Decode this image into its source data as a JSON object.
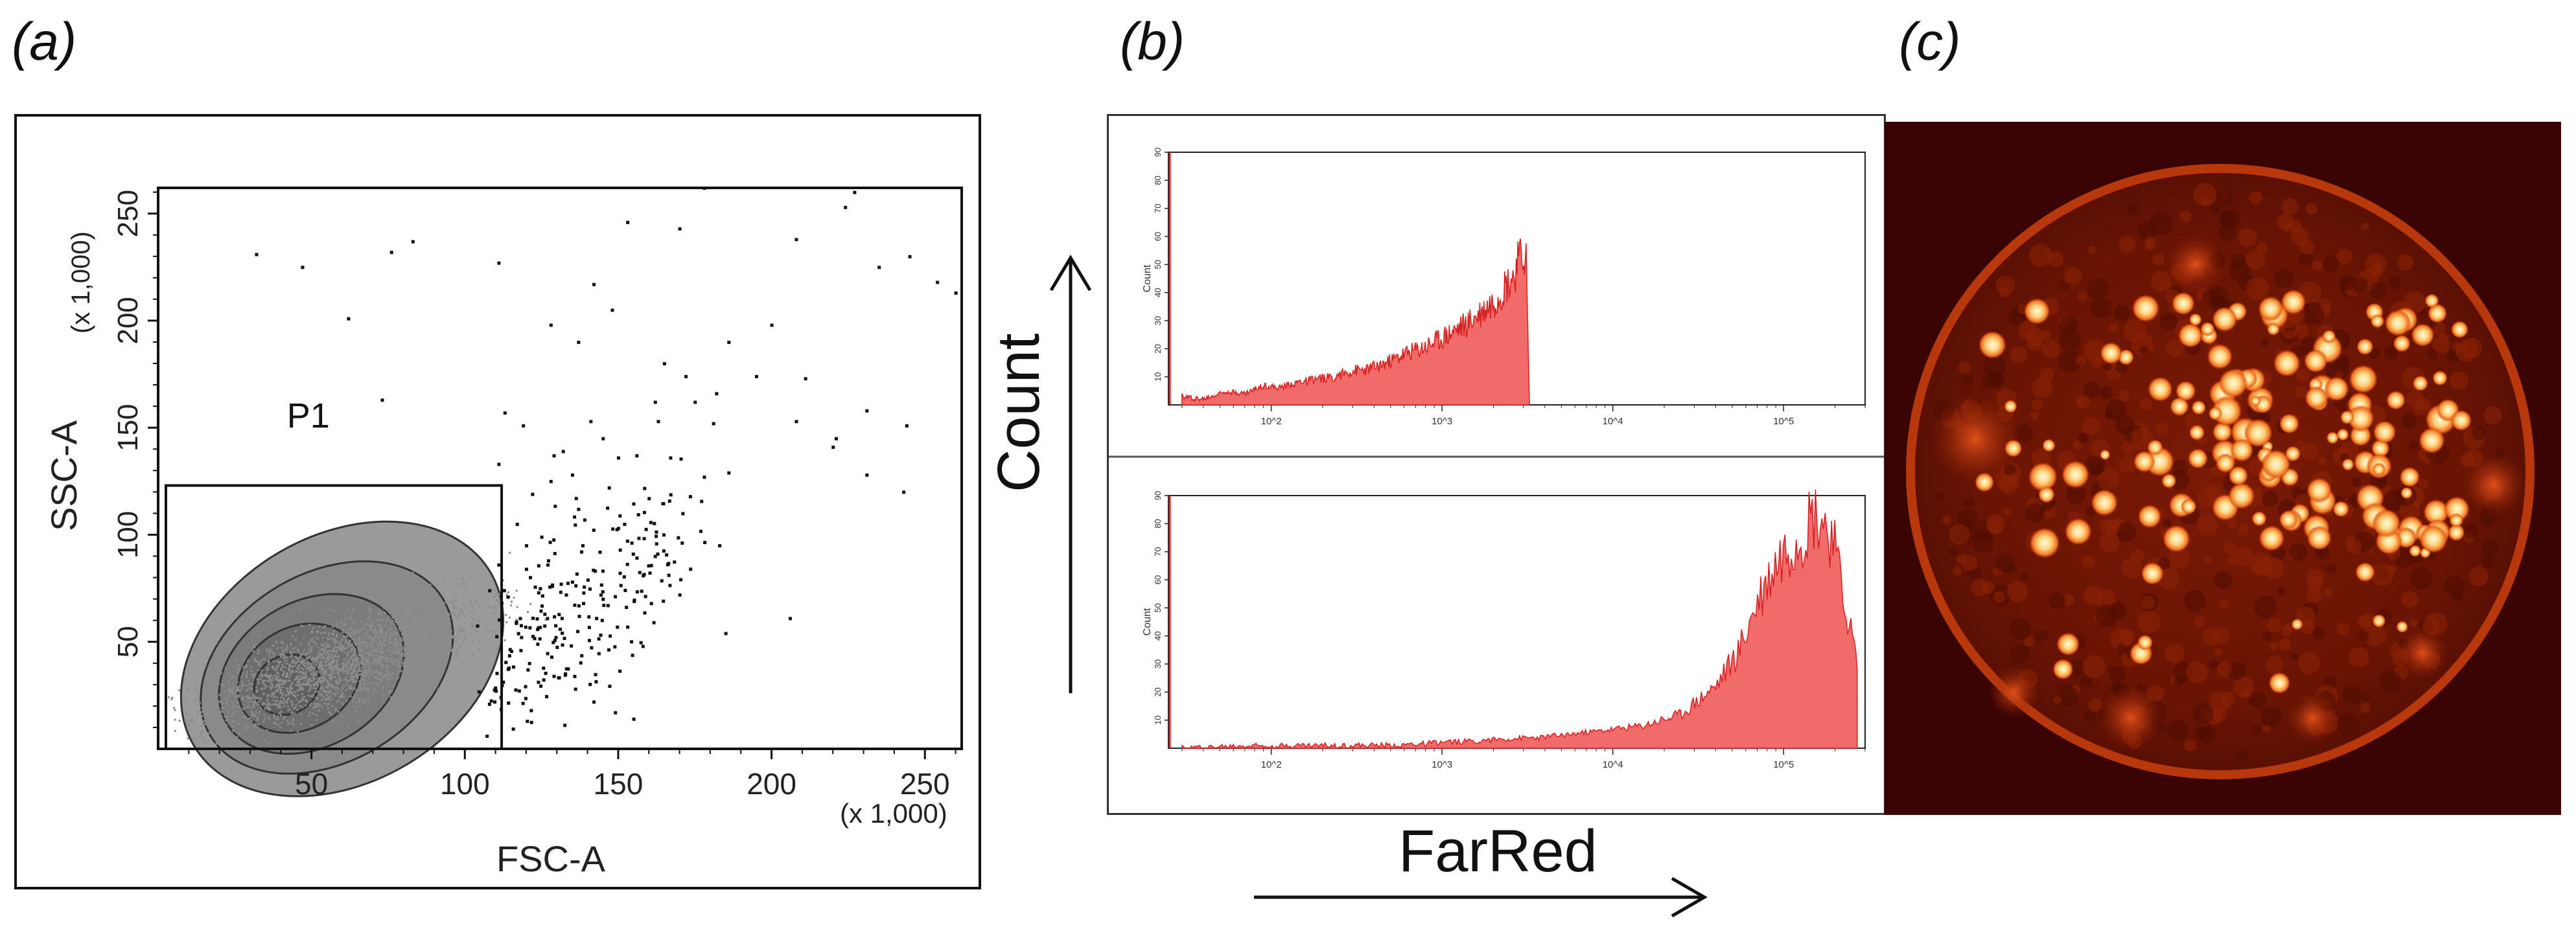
{
  "panels": {
    "a": "(a)",
    "b": "(b)",
    "c": "(c)"
  },
  "colors": {
    "hist_fill": "#f26b6b",
    "hist_line": "#d62020",
    "contour": "#7a7a7a",
    "dots": "#111111",
    "gate": "#111111"
  },
  "chart_data": [
    {
      "type": "scatter",
      "title": "",
      "xlabel": "FSC-A",
      "ylabel": "SSC-A",
      "x_multiplier": "(x 1,000)",
      "y_multiplier": "(x 1,000)",
      "xlim": [
        0,
        262
      ],
      "ylim": [
        0,
        262
      ],
      "xticks": [
        50,
        100,
        150,
        200,
        250
      ],
      "yticks": [
        50,
        100,
        150,
        200,
        250
      ],
      "gate": {
        "name": "P1",
        "x": [
          0,
          112
        ],
        "y": [
          0,
          123
        ]
      },
      "contours": [
        {
          "cx": 60,
          "cy": 42,
          "rx": 56,
          "ry": 17,
          "angle": 30,
          "fill": "#9a9a9a"
        },
        {
          "cx": 55,
          "cy": 38,
          "rx": 44,
          "ry": 13,
          "angle": 30,
          "fill": "#8a8a8a"
        },
        {
          "cx": 50,
          "cy": 35,
          "rx": 32,
          "ry": 10,
          "angle": 30,
          "fill": "#7c7c7c"
        },
        {
          "cx": 46,
          "cy": 33,
          "rx": 21,
          "ry": 7,
          "angle": 30,
          "fill": "#6e6e6e"
        },
        {
          "cx": 42,
          "cy": 30,
          "rx": 11,
          "ry": 4,
          "angle": 30,
          "fill": "#606060"
        }
      ],
      "outlier_points": [
        [
          32,
          231
        ],
        [
          47,
          225
        ],
        [
          76,
          232
        ],
        [
          83,
          237
        ],
        [
          111,
          227
        ],
        [
          62,
          201
        ],
        [
          73,
          163
        ],
        [
          170,
          243
        ],
        [
          153,
          246
        ],
        [
          224,
          253
        ],
        [
          178,
          262
        ],
        [
          200,
          198
        ],
        [
          208,
          238
        ],
        [
          235,
          225
        ],
        [
          245,
          230
        ],
        [
          254,
          218
        ],
        [
          227,
          260
        ],
        [
          260,
          213
        ],
        [
          211,
          173
        ],
        [
          221,
          145
        ],
        [
          231,
          158
        ],
        [
          244,
          151
        ],
        [
          167,
          136
        ],
        [
          163,
          153
        ],
        [
          156,
          137
        ],
        [
          181,
          152
        ],
        [
          186,
          129
        ],
        [
          175,
          162
        ],
        [
          172,
          174
        ],
        [
          186,
          190
        ],
        [
          165,
          180
        ],
        [
          128,
          198
        ],
        [
          137,
          190
        ],
        [
          142,
          217
        ],
        [
          148,
          205
        ],
        [
          132,
          139
        ],
        [
          135,
          128
        ],
        [
          129,
          137
        ],
        [
          122,
          119
        ],
        [
          119,
          151
        ],
        [
          113,
          157
        ],
        [
          117,
          105
        ],
        [
          127,
          86
        ],
        [
          135,
          78
        ],
        [
          145,
          70
        ],
        [
          153,
          57
        ],
        [
          158,
          48
        ],
        [
          144,
          92
        ],
        [
          131,
          56
        ],
        [
          118,
          61
        ],
        [
          124,
          73
        ],
        [
          111,
          86
        ],
        [
          139,
          107
        ],
        [
          147,
          122
        ],
        [
          160,
          117
        ],
        [
          150,
          136
        ],
        [
          141,
          153
        ],
        [
          171,
          110
        ],
        [
          178,
          127
        ],
        [
          183,
          95
        ],
        [
          125,
          99
        ],
        [
          133,
          72
        ],
        [
          120,
          84
        ],
        [
          126,
          63
        ],
        [
          114,
          71
        ],
        [
          120,
          95
        ],
        [
          108,
          74
        ],
        [
          137,
          112
        ],
        [
          152,
          105
        ],
        [
          162,
          90
        ],
        [
          170,
          72
        ],
        [
          121,
          40
        ],
        [
          129,
          34
        ],
        [
          136,
          28
        ],
        [
          142,
          22
        ],
        [
          149,
          17
        ],
        [
          155,
          14
        ],
        [
          111,
          133
        ],
        [
          128,
          125
        ],
        [
          145,
          145
        ],
        [
          162,
          162
        ],
        [
          182,
          166
        ],
        [
          195,
          174
        ],
        [
          208,
          153
        ],
        [
          220,
          141
        ],
        [
          231,
          128
        ],
        [
          243,
          120
        ],
        [
          185,
          54
        ],
        [
          206,
          61
        ]
      ]
    },
    {
      "type": "area",
      "title": "",
      "xlabel": "FarRed",
      "ylabel": "Count",
      "xscale": "log",
      "xlim": [
        25,
        300000
      ],
      "ylim": [
        0,
        90
      ],
      "xticks": [
        "10^2",
        "10^3",
        "10^4",
        "10^5"
      ],
      "yticks": [
        10,
        20,
        30,
        40,
        50,
        60,
        70,
        80,
        90
      ],
      "x": [
        30,
        40,
        55,
        70,
        90,
        110,
        140,
        180,
        230,
        300,
        380,
        480,
        600,
        750,
        950,
        1150,
        1400,
        1700,
        2000,
        2300,
        2600,
        2900,
        3100,
        3250
      ],
      "values": [
        3,
        2,
        5,
        4,
        7,
        6,
        8,
        9,
        10,
        12,
        13,
        15,
        18,
        20,
        23,
        26,
        29,
        33,
        37,
        42,
        46,
        52,
        55,
        0
      ]
    },
    {
      "type": "area",
      "title": "",
      "xlabel": "FarRed",
      "ylabel": "Count",
      "xscale": "log",
      "xlim": [
        25,
        300000
      ],
      "ylim": [
        0,
        90
      ],
      "xticks": [
        "10^2",
        "10^3",
        "10^4",
        "10^5"
      ],
      "yticks": [
        10,
        20,
        30,
        40,
        50,
        60,
        70,
        80,
        90
      ],
      "x": [
        30,
        80,
        200,
        500,
        1000,
        2000,
        4000,
        8000,
        15000,
        25000,
        40000,
        55000,
        70000,
        90000,
        110000,
        130000,
        150000,
        170000,
        190000,
        210000,
        240000,
        270000
      ],
      "values": [
        0,
        1,
        1,
        1,
        2,
        3,
        4,
        6,
        8,
        12,
        22,
        35,
        52,
        66,
        74,
        78,
        84,
        82,
        76,
        62,
        46,
        30
      ]
    }
  ],
  "micrograph": {
    "description_label": "",
    "bg": "#3a0404"
  },
  "axis_labels": {
    "count": "Count",
    "farred": "FarRed"
  }
}
